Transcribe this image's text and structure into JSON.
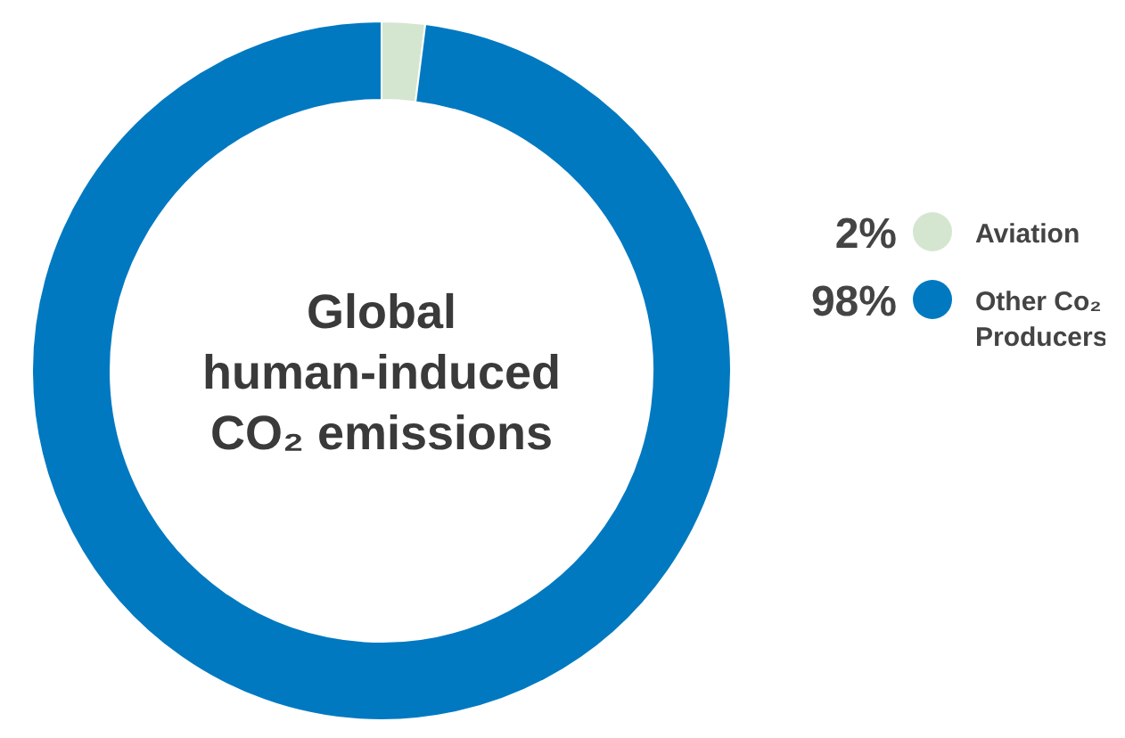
{
  "chart_data": {
    "type": "donut",
    "title": "Global human-induced CO₂ emissions",
    "categories": [
      "Aviation",
      "Other Co₂ Producers"
    ],
    "values": [
      2,
      98
    ],
    "colors": [
      "#d5e6d0",
      "#0079c1"
    ],
    "value_labels": [
      "2%",
      "98%"
    ],
    "legend": "right"
  }
}
